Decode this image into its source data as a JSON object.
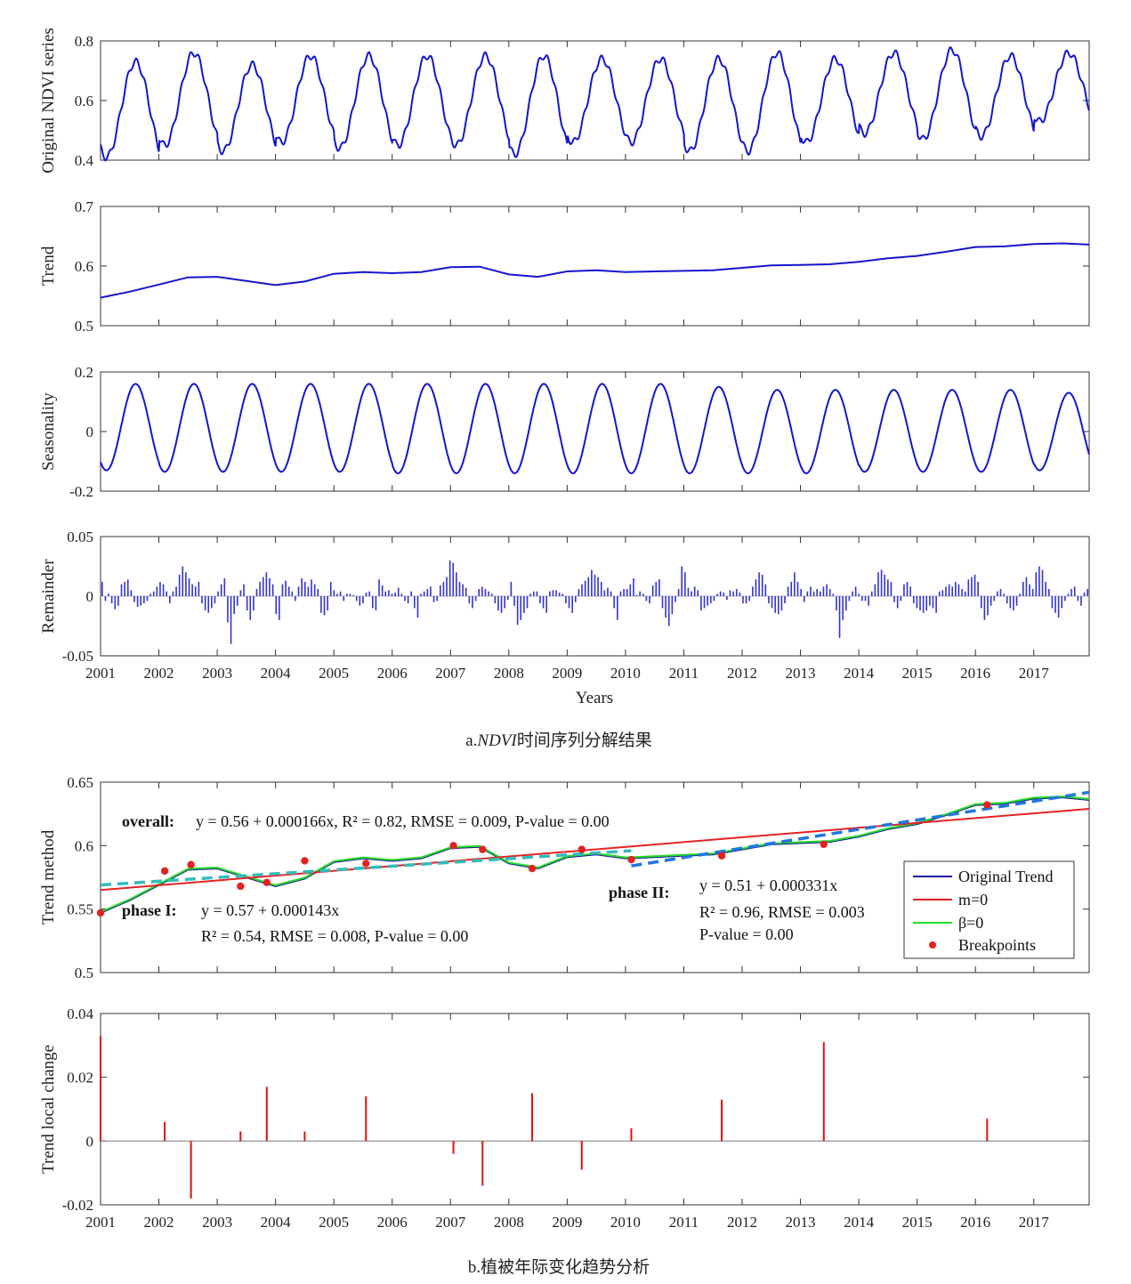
{
  "chart_data": [
    {
      "id": "ndvi",
      "type": "line",
      "ylabel": "Original NDVI series",
      "ylim": [
        0.4,
        0.8
      ],
      "yticks": [
        0.4,
        0.6,
        0.8
      ],
      "xlim": [
        2001,
        2017.95
      ],
      "series": [
        {
          "color": "#1515cc",
          "amplitude_per_year": [
            0.15,
            0.15,
            0.14,
            0.145,
            0.15,
            0.15,
            0.15,
            0.15,
            0.145,
            0.14,
            0.145,
            0.14,
            0.14,
            0.14,
            0.145,
            0.14,
            0.14
          ],
          "min_values": [
            0.41,
            0.45,
            0.43,
            0.46,
            0.44,
            0.45,
            0.45,
            0.42,
            0.46,
            0.46,
            0.43,
            0.43,
            0.46,
            0.49,
            0.47,
            0.48,
            0.53
          ],
          "peak_values": [
            0.73,
            0.76,
            0.72,
            0.75,
            0.75,
            0.75,
            0.75,
            0.75,
            0.74,
            0.74,
            0.74,
            0.76,
            0.74,
            0.76,
            0.77,
            0.75,
            0.76
          ]
        }
      ]
    },
    {
      "id": "trend",
      "type": "line",
      "ylabel": "Trend",
      "ylim": [
        0.5,
        0.7
      ],
      "yticks": [
        0.5,
        0.6,
        0.7
      ],
      "xlim": [
        2001,
        2017.95
      ],
      "series": [
        {
          "color": "#1515cc",
          "x": [
            2001.0,
            2001.5,
            2002.0,
            2002.5,
            2003.0,
            2003.5,
            2004.0,
            2004.5,
            2005.0,
            2005.5,
            2006.0,
            2006.5,
            2007.0,
            2007.5,
            2008.0,
            2008.5,
            2009.0,
            2009.5,
            2010.0,
            2010.5,
            2011.0,
            2011.5,
            2012.0,
            2012.5,
            2013.0,
            2013.5,
            2014.0,
            2014.5,
            2015.0,
            2015.5,
            2016.0,
            2016.5,
            2017.0,
            2017.5,
            2017.95
          ],
          "y": [
            0.547,
            0.557,
            0.569,
            0.581,
            0.582,
            0.575,
            0.568,
            0.574,
            0.587,
            0.59,
            0.588,
            0.59,
            0.598,
            0.599,
            0.586,
            0.582,
            0.591,
            0.593,
            0.59,
            0.591,
            0.592,
            0.593,
            0.597,
            0.601,
            0.602,
            0.603,
            0.607,
            0.613,
            0.617,
            0.624,
            0.632,
            0.633,
            0.637,
            0.638,
            0.636
          ]
        }
      ]
    },
    {
      "id": "seasonality",
      "type": "line",
      "ylabel": "Seasonality",
      "ylim": [
        -0.2,
        0.2
      ],
      "yticks": [
        -0.2,
        0,
        0.2
      ],
      "xlim": [
        2001,
        2017.95
      ],
      "series": [
        {
          "color": "#1515cc",
          "peak_values": [
            0.16,
            0.16,
            0.16,
            0.16,
            0.16,
            0.16,
            0.16,
            0.16,
            0.16,
            0.16,
            0.15,
            0.14,
            0.14,
            0.14,
            0.14,
            0.14,
            0.13
          ],
          "min_values": [
            -0.13,
            -0.135,
            -0.135,
            -0.135,
            -0.135,
            -0.14,
            -0.14,
            -0.14,
            -0.14,
            -0.14,
            -0.14,
            -0.14,
            -0.14,
            -0.135,
            -0.135,
            -0.135,
            -0.13
          ]
        }
      ]
    },
    {
      "id": "remainder",
      "type": "bar",
      "ylabel": "Remainder",
      "xlabel": "Years",
      "ylim": [
        -0.05,
        0.05
      ],
      "yticks": [
        -0.05,
        0,
        0.05
      ],
      "yticklabels": [
        "-0.05",
        "0",
        "0.05"
      ],
      "xlim": [
        2001,
        2017.95
      ],
      "xticks": [
        "2001",
        "2002",
        "2003",
        "2004",
        "2005",
        "2006",
        "2007",
        "2008",
        "2009",
        "2010",
        "2011",
        "2012",
        "2013",
        "2014",
        "2015",
        "2016",
        "2017"
      ],
      "series": [
        {
          "color": "#3333cc",
          "values": [
            0.012,
            -0.004,
            0.002,
            -0.006,
            -0.011,
            -0.008,
            0.01,
            0.012,
            0.014,
            0.005,
            -0.005,
            -0.009,
            -0.008,
            -0.006,
            -0.004,
            0.002,
            0.004,
            0.008,
            0.012,
            0.01,
            0.004,
            -0.006,
            0.004,
            0.008,
            0.018,
            0.025,
            0.02,
            0.015,
            0.01,
            0.008,
            0.012,
            -0.006,
            -0.012,
            -0.014,
            -0.01,
            -0.006,
            0.004,
            0.01,
            0.015,
            -0.022,
            -0.04,
            -0.015,
            -0.008,
            0.005,
            0.01,
            -0.012,
            -0.02,
            -0.012,
            0.006,
            0.012,
            0.016,
            0.02,
            0.015,
            0.01,
            -0.015,
            -0.02,
            0.01,
            0.013,
            0.008,
            0.004,
            -0.004,
            0.008,
            0.015,
            0.012,
            0.008,
            0.014,
            0.01,
            0.006,
            -0.014,
            -0.016,
            -0.012,
            0.012,
            0.005,
            0.002,
            0.004,
            -0.004,
            0.002,
            0.002,
            0.001,
            -0.004,
            -0.008,
            -0.006,
            0.003,
            0.004,
            -0.01,
            -0.012,
            0.014,
            0.009,
            0.004,
            0.005,
            0.002,
            0.003,
            0.007,
            0.002,
            -0.004,
            -0.006,
            0.004,
            -0.01,
            -0.018,
            0.002,
            0.004,
            0.006,
            0.008,
            -0.005,
            -0.004,
            0.009,
            0.012,
            0.016,
            0.03,
            0.028,
            0.02,
            0.012,
            0.01,
            0.007,
            -0.006,
            -0.01,
            -0.004,
            0.006,
            0.008,
            0.006,
            0.004,
            0.002,
            -0.006,
            -0.012,
            -0.014,
            -0.01,
            -0.003,
            0.012,
            -0.008,
            -0.024,
            -0.02,
            -0.014,
            -0.01,
            0.002,
            0.004,
            0.004,
            -0.006,
            -0.01,
            -0.014,
            0.004,
            0.005,
            0.005,
            0.003,
            0.002,
            -0.006,
            -0.01,
            -0.014,
            -0.005,
            0.006,
            0.01,
            0.013,
            0.016,
            0.022,
            0.018,
            0.016,
            0.012,
            0.005,
            0.007,
            0.004,
            -0.01,
            -0.02,
            0.004,
            0.006,
            0.006,
            0.01,
            0.015,
            0.001,
            0.004,
            0.002,
            -0.004,
            -0.006,
            0.009,
            0.012,
            0.014,
            -0.01,
            -0.018,
            -0.025,
            -0.015,
            -0.005,
            0.006,
            0.025,
            0.02,
            0.007,
            0.004,
            0.008,
            0.005,
            -0.012,
            -0.01,
            -0.008,
            -0.006,
            -0.004,
            0.002,
            0.004,
            0.003,
            -0.003,
            0.005,
            0.004,
            0.006,
            0.003,
            -0.006,
            -0.006,
            -0.004,
            0.008,
            0.014,
            0.02,
            0.018,
            0.01,
            -0.006,
            -0.01,
            -0.014,
            -0.015,
            -0.012,
            -0.006,
            0.008,
            0.012,
            0.02,
            0.012,
            0.006,
            -0.005,
            0.004,
            0.008,
            0.004,
            0.006,
            0.004,
            0.008,
            0.01,
            0.006,
            0.002,
            -0.012,
            -0.035,
            -0.02,
            -0.012,
            -0.004,
            0.004,
            0.008,
            0.002,
            -0.004,
            -0.004,
            -0.008,
            0.004,
            0.01,
            0.02,
            0.022,
            0.018,
            0.014,
            0.012,
            -0.005,
            -0.01,
            -0.004,
            0.01,
            0.012,
            0.008,
            -0.006,
            -0.01,
            -0.012,
            -0.014,
            -0.012,
            -0.008,
            -0.01,
            -0.014,
            0.004,
            0.005,
            0.008,
            0.01,
            0.008,
            0.012,
            0.01,
            0.006,
            0.004,
            0.014,
            0.016,
            0.018,
            0.012,
            -0.01,
            -0.02,
            -0.016,
            -0.008,
            -0.004,
            0.004,
            0.006,
            0.002,
            -0.006,
            -0.01,
            -0.012,
            -0.008,
            0.002,
            0.012,
            0.016,
            0.01,
            0.006,
            0.02,
            0.025,
            0.022,
            0.012,
            0.006,
            -0.01,
            -0.014,
            -0.018,
            -0.01,
            -0.004,
            0.002,
            0.006,
            0.008,
            -0.004,
            -0.008,
            0.003,
            0.006
          ]
        }
      ]
    },
    {
      "id": "trend-method",
      "type": "line",
      "ylabel": "Trend method",
      "ylim": [
        0.5,
        0.65
      ],
      "yticks": [
        0.5,
        0.55,
        0.6,
        0.65
      ],
      "xlim": [
        2001,
        2017.95
      ],
      "series": [
        {
          "name": "Original Trend",
          "color": "#1a1aa0"
        },
        {
          "name": "m=0",
          "color": "#e52222",
          "x": [
            2001,
            2017.95
          ],
          "y": [
            0.565,
            0.629
          ]
        },
        {
          "name": "β=0",
          "color": "#22dd22"
        },
        {
          "name": "Breakpoints",
          "color": "#e52222",
          "x": [
            2001.0,
            2002.1,
            2002.55,
            2003.4,
            2003.85,
            2004.5,
            2005.55,
            2007.05,
            2007.55,
            2008.4,
            2009.25,
            2010.1,
            2011.65,
            2013.4,
            2016.2
          ],
          "y": [
            0.547,
            0.58,
            0.585,
            0.568,
            0.571,
            0.588,
            0.586,
            0.6,
            0.597,
            0.582,
            0.597,
            0.589,
            0.592,
            0.601,
            0.632
          ]
        },
        {
          "name": "phase I fit",
          "color": "#33bbbb",
          "x": [
            2001,
            2010.1
          ],
          "y": [
            0.569,
            0.596
          ]
        },
        {
          "name": "phase II fit",
          "color": "#2277dd",
          "x": [
            2010.1,
            2017.95
          ],
          "y": [
            0.584,
            0.642
          ]
        }
      ],
      "annotations": {
        "overall_label": "overall:",
        "overall_eq": "y = 0.56 + 0.000166x, R² = 0.82, RMSE = 0.009, P-value = 0.00",
        "phase1_label": "phase I:",
        "phase1_eq1": "y = 0.57 + 0.000143x",
        "phase1_eq2": "R² = 0.54, RMSE = 0.008, P-value = 0.00",
        "phase2_label": "phase II:",
        "phase2_eq1": "y = 0.51 + 0.000331x",
        "phase2_eq2": "R² = 0.96, RMSE = 0.003",
        "phase2_eq3": "P-value = 0.00"
      },
      "legend": {
        "position": "right",
        "items": [
          "Original Trend",
          "m=0",
          "β=0",
          "Breakpoints"
        ]
      }
    },
    {
      "id": "trend-local-change",
      "type": "bar",
      "ylabel": "Trend local change",
      "ylim": [
        -0.02,
        0.04
      ],
      "yticks": [
        -0.02,
        0,
        0.02,
        0.04
      ],
      "yticklabels": [
        "-0.02",
        "0",
        "0.02",
        "0.04"
      ],
      "xlim": [
        2001,
        2017.95
      ],
      "xticks": [
        "2001",
        "2002",
        "2003",
        "2004",
        "2005",
        "2006",
        "2007",
        "2008",
        "2009",
        "2010",
        "2011",
        "2012",
        "2013",
        "2014",
        "2015",
        "2016",
        "2017"
      ],
      "series": [
        {
          "color": "#dd1111",
          "x": [
            2001.0,
            2002.1,
            2002.55,
            2003.4,
            2003.85,
            2004.5,
            2005.55,
            2007.05,
            2007.55,
            2008.4,
            2009.25,
            2010.1,
            2011.65,
            2013.4,
            2016.2
          ],
          "values": [
            0.033,
            0.006,
            -0.018,
            0.003,
            0.017,
            0.003,
            0.014,
            -0.004,
            -0.014,
            0.015,
            -0.009,
            0.004,
            0.013,
            0.031,
            0.007
          ]
        }
      ]
    }
  ],
  "captions": {
    "a_prefix": "a.",
    "a_italic": "NDVI",
    "a_rest": "时间序列分解结果",
    "b": "b.植被年际变化趋势分析"
  }
}
